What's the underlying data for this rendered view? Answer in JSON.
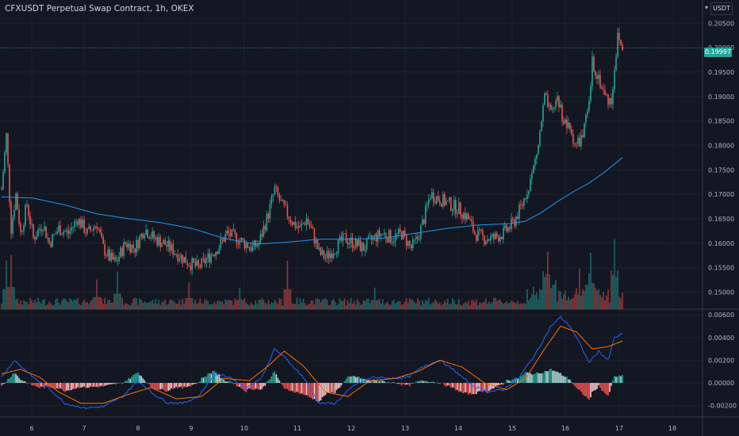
{
  "chart": {
    "title": "CFXUSDT Perpetual Swap Contract, 1h, OKEX",
    "currency": "USDT",
    "last_price": "0.19997"
  },
  "chart_data": {
    "type": "candlestick",
    "colors": {
      "up": "#26a69a",
      "down": "#ef5350",
      "ma": "#2196f3",
      "macd": "#2962ff",
      "signal": "#ff6d00",
      "background": "#131722",
      "grid": "#1e222d"
    },
    "x_axis": {
      "ticks": [
        "6",
        "7",
        "8",
        "9",
        "10",
        "11",
        "12",
        "13",
        "14",
        "15",
        "16",
        "17",
        "18"
      ]
    },
    "price_axis": {
      "ticks": [
        "0.20500",
        "0.20000",
        "0.19500",
        "0.19000",
        "0.18500",
        "0.18000",
        "0.17500",
        "0.17000",
        "0.16500",
        "0.16000",
        "0.15500",
        "0.15000"
      ],
      "ylim": [
        0.1465,
        0.2065
      ]
    },
    "macd_axis": {
      "ticks": [
        "0.00600",
        "0.00400",
        "0.00200",
        "0.00000",
        "-0.00200"
      ],
      "ylim": [
        -0.003,
        0.0065
      ]
    },
    "price_keypoints": [
      [
        0,
        0.171
      ],
      [
        3,
        0.182
      ],
      [
        6,
        0.163
      ],
      [
        9,
        0.17
      ],
      [
        12,
        0.162
      ],
      [
        16,
        0.168
      ],
      [
        20,
        0.161
      ],
      [
        26,
        0.164
      ],
      [
        30,
        0.16
      ],
      [
        36,
        0.163
      ],
      [
        42,
        0.162
      ],
      [
        48,
        0.165
      ],
      [
        54,
        0.162
      ],
      [
        60,
        0.164
      ],
      [
        64,
        0.159
      ],
      [
        68,
        0.157
      ],
      [
        72,
        0.156
      ],
      [
        78,
        0.16
      ],
      [
        84,
        0.159
      ],
      [
        90,
        0.163
      ],
      [
        96,
        0.161
      ],
      [
        102,
        0.16
      ],
      [
        110,
        0.158
      ],
      [
        118,
        0.156
      ],
      [
        124,
        0.155
      ],
      [
        130,
        0.157
      ],
      [
        136,
        0.159
      ],
      [
        142,
        0.162
      ],
      [
        148,
        0.161
      ],
      [
        153,
        0.16
      ],
      [
        158,
        0.159
      ],
      [
        162,
        0.16
      ],
      [
        168,
        0.166
      ],
      [
        172,
        0.171
      ],
      [
        176,
        0.168
      ],
      [
        180,
        0.166
      ],
      [
        184,
        0.164
      ],
      [
        188,
        0.163
      ],
      [
        192,
        0.165
      ],
      [
        196,
        0.162
      ],
      [
        200,
        0.158
      ],
      [
        204,
        0.157
      ],
      [
        210,
        0.159
      ],
      [
        216,
        0.161
      ],
      [
        222,
        0.16
      ],
      [
        228,
        0.159
      ],
      [
        234,
        0.161
      ],
      [
        240,
        0.162
      ],
      [
        246,
        0.161
      ],
      [
        252,
        0.162
      ],
      [
        258,
        0.159
      ],
      [
        262,
        0.161
      ],
      [
        266,
        0.165
      ],
      [
        270,
        0.17
      ],
      [
        276,
        0.169
      ],
      [
        282,
        0.168
      ],
      [
        288,
        0.167
      ],
      [
        294,
        0.165
      ],
      [
        298,
        0.162
      ],
      [
        304,
        0.161
      ],
      [
        310,
        0.161
      ],
      [
        316,
        0.162
      ],
      [
        322,
        0.164
      ],
      [
        328,
        0.168
      ],
      [
        334,
        0.174
      ],
      [
        338,
        0.18
      ],
      [
        342,
        0.19
      ],
      [
        346,
        0.186
      ],
      [
        350,
        0.19
      ],
      [
        354,
        0.185
      ],
      [
        358,
        0.183
      ],
      [
        362,
        0.18
      ],
      [
        366,
        0.182
      ],
      [
        370,
        0.188
      ],
      [
        372,
        0.197
      ],
      [
        376,
        0.194
      ],
      [
        380,
        0.19
      ],
      [
        384,
        0.189
      ],
      [
        386,
        0.196
      ],
      [
        388,
        0.202
      ],
      [
        391,
        0.2
      ]
    ],
    "ma_keypoints": [
      [
        0,
        0.1695
      ],
      [
        20,
        0.1692
      ],
      [
        40,
        0.1678
      ],
      [
        60,
        0.166
      ],
      [
        80,
        0.165
      ],
      [
        100,
        0.1642
      ],
      [
        120,
        0.163
      ],
      [
        140,
        0.161
      ],
      [
        160,
        0.1598
      ],
      [
        180,
        0.1602
      ],
      [
        200,
        0.1608
      ],
      [
        220,
        0.1608
      ],
      [
        240,
        0.161
      ],
      [
        260,
        0.162
      ],
      [
        280,
        0.163
      ],
      [
        300,
        0.1637
      ],
      [
        320,
        0.164
      ],
      [
        330,
        0.1645
      ],
      [
        340,
        0.1663
      ],
      [
        350,
        0.1685
      ],
      [
        360,
        0.1705
      ],
      [
        370,
        0.1723
      ],
      [
        380,
        0.1746
      ],
      [
        391,
        0.1775
      ]
    ],
    "macd_keypoints": [
      [
        0,
        0.0005
      ],
      [
        8,
        0.002
      ],
      [
        20,
        0.0005
      ],
      [
        30,
        -0.0005
      ],
      [
        40,
        -0.0018
      ],
      [
        52,
        -0.0022
      ],
      [
        64,
        -0.0021
      ],
      [
        76,
        -0.0012
      ],
      [
        86,
        0.0002
      ],
      [
        96,
        -0.001
      ],
      [
        104,
        -0.0017
      ],
      [
        114,
        -0.0018
      ],
      [
        124,
        -0.0012
      ],
      [
        134,
        0.0008
      ],
      [
        144,
        0.0005
      ],
      [
        154,
        -0.0005
      ],
      [
        164,
        0.0005
      ],
      [
        172,
        0.003
      ],
      [
        180,
        0.002
      ],
      [
        190,
        0.0005
      ],
      [
        200,
        -0.0018
      ],
      [
        210,
        -0.0018
      ],
      [
        222,
        -0.0002
      ],
      [
        234,
        0.0005
      ],
      [
        246,
        0.0004
      ],
      [
        256,
        0.0005
      ],
      [
        266,
        0.0015
      ],
      [
        276,
        0.002
      ],
      [
        286,
        0.001
      ],
      [
        296,
        -0.0002
      ],
      [
        306,
        -0.0008
      ],
      [
        316,
        -0.0006
      ],
      [
        326,
        0.0005
      ],
      [
        336,
        0.0025
      ],
      [
        346,
        0.005
      ],
      [
        352,
        0.0058
      ],
      [
        358,
        0.005
      ],
      [
        364,
        0.0035
      ],
      [
        370,
        0.0018
      ],
      [
        376,
        0.0028
      ],
      [
        382,
        0.002
      ],
      [
        386,
        0.004
      ],
      [
        391,
        0.0043
      ]
    ],
    "signal_keypoints": [
      [
        0,
        0.0008
      ],
      [
        12,
        0.0012
      ],
      [
        24,
        0.0005
      ],
      [
        36,
        -0.0008
      ],
      [
        50,
        -0.0018
      ],
      [
        64,
        -0.0018
      ],
      [
        80,
        -0.001
      ],
      [
        94,
        -0.0004
      ],
      [
        110,
        -0.0014
      ],
      [
        126,
        -0.0012
      ],
      [
        140,
        0.0004
      ],
      [
        156,
        0.0002
      ],
      [
        168,
        0.0015
      ],
      [
        178,
        0.0028
      ],
      [
        190,
        0.0015
      ],
      [
        204,
        -0.0008
      ],
      [
        218,
        -0.0012
      ],
      [
        232,
        0.0002
      ],
      [
        248,
        0.0004
      ],
      [
        262,
        0.001
      ],
      [
        276,
        0.002
      ],
      [
        290,
        0.0014
      ],
      [
        304,
        0.0
      ],
      [
        318,
        -0.0006
      ],
      [
        330,
        0.0004
      ],
      [
        342,
        0.003
      ],
      [
        352,
        0.005
      ],
      [
        362,
        0.0045
      ],
      [
        372,
        0.003
      ],
      [
        382,
        0.0032
      ],
      [
        391,
        0.0037
      ]
    ],
    "volume_spikes": [
      [
        3,
        0.9
      ],
      [
        6,
        1.0
      ],
      [
        60,
        0.55
      ],
      [
        73,
        0.7
      ],
      [
        118,
        0.5
      ],
      [
        150,
        0.4
      ],
      [
        180,
        0.9
      ],
      [
        235,
        0.4
      ],
      [
        341,
        0.7
      ],
      [
        344,
        0.9
      ],
      [
        349,
        0.35
      ],
      [
        364,
        0.6
      ],
      [
        371,
        1.0
      ],
      [
        386,
        1.1
      ]
    ]
  }
}
